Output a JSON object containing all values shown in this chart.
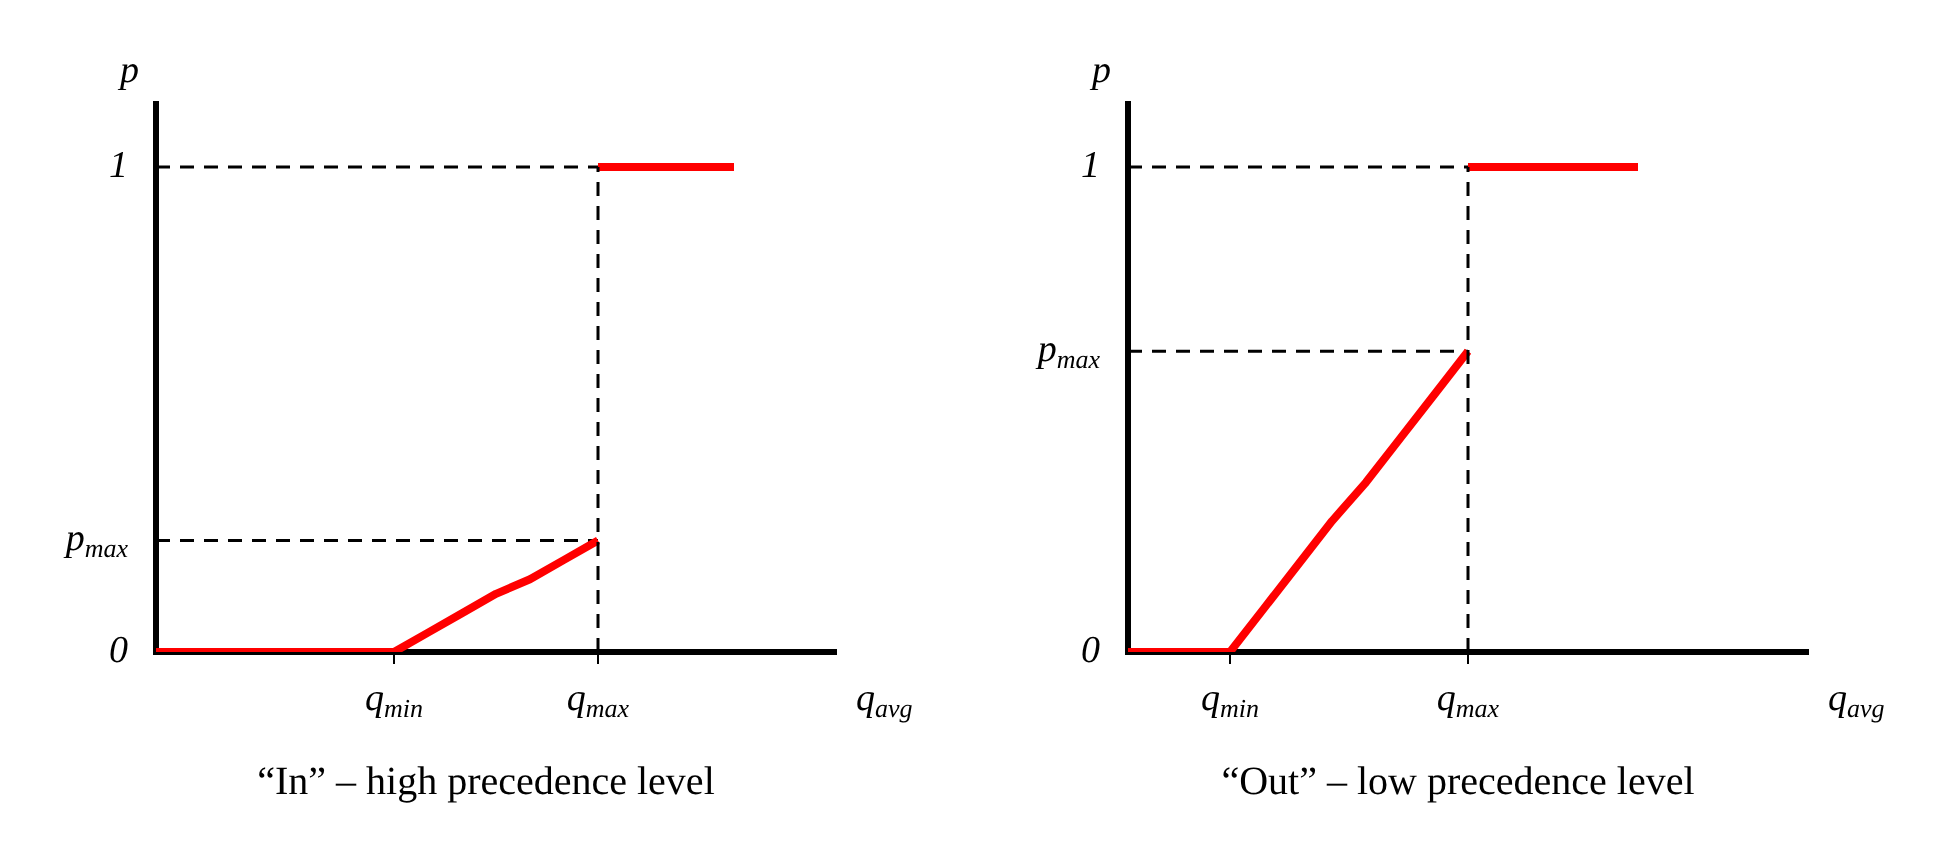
{
  "chart_data": [
    {
      "type": "line",
      "title": "“In” – high precedence level",
      "xlabel": "q$_{avg}$",
      "ylabel": "p",
      "categories": [
        null,
        null,
        null,
        null,
        null,
        null,
        null,
        "q$_{min}$",
        null,
        null,
        null,
        null,
        null,
        "q$_{max}$",
        null,
        null,
        null,
        null,
        null,
        null,
        null
      ],
      "ylim": [
        0,
        1.13
      ],
      "yticks": [
        {
          "value": 0,
          "label": "0"
        },
        {
          "value": 0.23,
          "label": "p$_{max}$"
        },
        {
          "value": 1,
          "label": "1"
        }
      ],
      "grid": false,
      "legend": false,
      "marker": "none",
      "ref_lines": [
        {
          "axis": "x",
          "value": "q$_{max}$",
          "color": "#000000",
          "line_style": "dashed"
        }
      ],
      "series": [
        {
          "color": "#ff0000",
          "values": [
            0,
            0,
            0,
            0,
            0,
            0,
            0,
            0,
            0.04,
            0.08,
            0.12,
            0.15,
            0.19,
            0.23,
            null,
            null,
            null,
            null,
            null,
            null,
            null
          ]
        },
        {
          "color": "#ff0000",
          "values": [
            null,
            null,
            null,
            null,
            null,
            null,
            null,
            null,
            null,
            null,
            null,
            null,
            null,
            1,
            1,
            1,
            1,
            1,
            null,
            null,
            null
          ]
        },
        {
          "color": "#000000",
          "line_style": "dashed",
          "values": [
            1,
            1,
            1,
            1,
            1,
            1,
            1,
            1,
            1,
            1,
            1,
            1,
            1,
            1,
            null,
            null,
            null,
            null,
            null,
            null,
            null
          ]
        },
        {
          "color": "#000000",
          "line_style": "dashed",
          "values": [
            0.23,
            0.23,
            0.23,
            0.23,
            0.23,
            0.23,
            0.23,
            0.23,
            0.23,
            0.23,
            0.23,
            0.23,
            0.23,
            0.23,
            null,
            null,
            null,
            null,
            null,
            null,
            null
          ]
        }
      ]
    },
    {
      "type": "line",
      "title": "“Out” – low precedence level",
      "xlabel": "q$_{avg}$",
      "ylabel": "p",
      "categories": [
        null,
        null,
        null,
        "q$_{min}$",
        null,
        null,
        null,
        null,
        null,
        null,
        "q$_{max}$",
        null,
        null,
        null,
        null,
        null,
        null,
        null,
        null,
        null,
        null
      ],
      "ylim": [
        0,
        1.13
      ],
      "yticks": [
        {
          "value": 0,
          "label": "0"
        },
        {
          "value": 0.62,
          "label": "p$_{max}$"
        },
        {
          "value": 1,
          "label": "1"
        }
      ],
      "grid": false,
      "legend": false,
      "marker": "none",
      "ref_lines": [
        {
          "axis": "x",
          "value": "q$_{max}$",
          "color": "#000000",
          "line_style": "dashed"
        }
      ],
      "series": [
        {
          "color": "#ff0000",
          "values": [
            0,
            0,
            0,
            0,
            0.09,
            0.18,
            0.27,
            0.35,
            0.44,
            0.53,
            0.62,
            null,
            null,
            null,
            null,
            null,
            null,
            null,
            null,
            null,
            null
          ]
        },
        {
          "color": "#ff0000",
          "values": [
            null,
            null,
            null,
            null,
            null,
            null,
            null,
            null,
            null,
            null,
            1,
            1,
            1,
            1,
            1,
            1,
            null,
            null,
            null,
            null,
            null
          ]
        },
        {
          "color": "#000000",
          "line_style": "dashed",
          "values": [
            1,
            1,
            1,
            1,
            1,
            1,
            1,
            1,
            1,
            1,
            1,
            null,
            null,
            null,
            null,
            null,
            null,
            null,
            null,
            null,
            null
          ]
        },
        {
          "color": "#000000",
          "line_style": "dashed",
          "values": [
            0.62,
            0.62,
            0.62,
            0.62,
            0.62,
            0.62,
            0.62,
            0.62,
            0.62,
            0.62,
            0.62,
            null,
            null,
            null,
            null,
            null,
            null,
            null,
            null,
            null,
            null
          ]
        }
      ]
    }
  ]
}
